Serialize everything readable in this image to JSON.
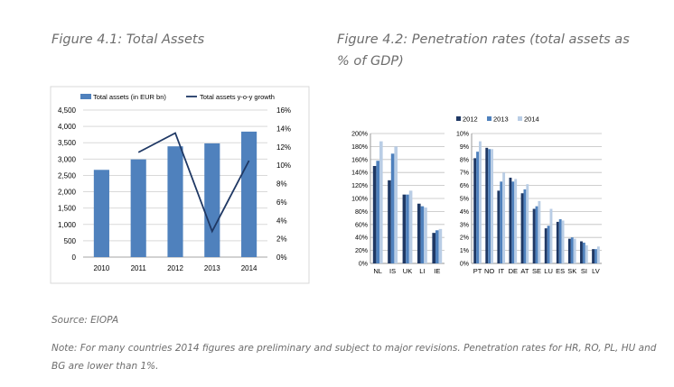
{
  "figure1": {
    "title": "Figure 4.1: Total Assets"
  },
  "figure2": {
    "title": "Figure 4.2: Penetration rates (total assets as % of GDP)"
  },
  "source": "Source: EIOPA",
  "note": "Note: For many countries 2014 figures are preliminary and subject to major revisions. Penetration rates for HR, RO, PL, HU and BG are lower than 1%.",
  "colors": {
    "bar_primary": "#4F81BD",
    "line": "#1F3864",
    "y2012": "#1F3864",
    "y2013": "#4F81BD",
    "y2014": "#B9CDE5",
    "grid": "#D9D9D9"
  },
  "chart_data": [
    {
      "type": "bar",
      "categories": [
        "2010",
        "2011",
        "2012",
        "2013",
        "2014"
      ],
      "series": [
        {
          "name": "Total assets (in EUR bn)",
          "type": "bar",
          "axis": "left",
          "values": [
            2670,
            2990,
            3390,
            3480,
            3840
          ]
        },
        {
          "name": "Total assets y-o-y growth",
          "type": "line",
          "axis": "right",
          "values": [
            null,
            11.4,
            13.5,
            2.8,
            10.5
          ]
        }
      ],
      "ylim": [
        0,
        4500
      ],
      "yticks": [
        "0",
        "500",
        "1,000",
        "1,500",
        "2,000",
        "2,500",
        "3,000",
        "3,500",
        "4,000",
        "4,500"
      ],
      "y2lim": [
        0,
        16
      ],
      "y2ticks": [
        "0%",
        "2%",
        "4%",
        "6%",
        "8%",
        "10%",
        "12%",
        "14%",
        "16%"
      ],
      "grid": true,
      "legend": "top"
    },
    {
      "type": "bar",
      "categories": [
        "NL",
        "IS",
        "UK",
        "LI",
        "IE"
      ],
      "series": [
        {
          "name": "2012",
          "values": [
            150,
            128,
            106,
            92,
            47
          ]
        },
        {
          "name": "2013",
          "values": [
            158,
            169,
            106,
            88,
            51
          ]
        },
        {
          "name": "2014",
          "values": [
            188,
            180,
            112,
            86,
            53
          ]
        }
      ],
      "ylim": [
        0,
        200
      ],
      "yticks": [
        "0%",
        "20%",
        "40%",
        "60%",
        "80%",
        "100%",
        "120%",
        "140%",
        "160%",
        "180%",
        "200%"
      ],
      "grid": true,
      "legend": "top"
    },
    {
      "type": "bar",
      "categories": [
        "PT",
        "NO",
        "IT",
        "DE",
        "AT",
        "SE",
        "LU",
        "ES",
        "SK",
        "SI",
        "LV"
      ],
      "series": [
        {
          "name": "2012",
          "values": [
            8.1,
            8.9,
            5.6,
            6.6,
            5.4,
            4.2,
            2.7,
            3.2,
            1.9,
            1.7,
            1.1
          ]
        },
        {
          "name": "2013",
          "values": [
            8.6,
            8.8,
            6.3,
            6.3,
            5.7,
            4.4,
            2.9,
            3.4,
            2.0,
            1.6,
            1.1
          ]
        },
        {
          "name": "2014",
          "values": [
            9.4,
            8.8,
            7.0,
            6.5,
            6.1,
            4.8,
            4.2,
            3.3,
            1.9,
            1.4,
            1.3
          ]
        }
      ],
      "ylim": [
        0,
        10
      ],
      "yticks": [
        "0%",
        "1%",
        "2%",
        "3%",
        "4%",
        "5%",
        "6%",
        "7%",
        "8%",
        "9%",
        "10%"
      ],
      "grid": true,
      "legend": "top"
    }
  ]
}
